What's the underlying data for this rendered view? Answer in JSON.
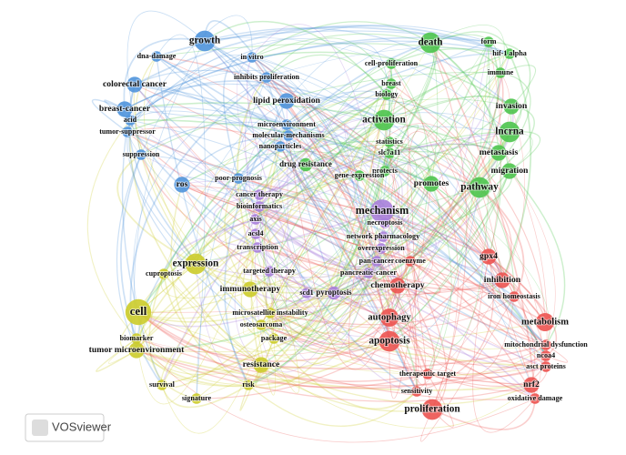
{
  "clusters": [
    {
      "color": "#4f94dc",
      "nodes": [
        "growth",
        "dna-damage",
        "in vitro",
        "inhibits proliferation",
        "colorectal cancer",
        "lipid peroxidation",
        "breast-cancer",
        "acid",
        "tumor-suppressor",
        "microenvironment",
        "molecular-mechanisms",
        "nanoparticles",
        "suppression",
        "poor-prognosis",
        "ros"
      ]
    },
    {
      "color": "#4cc44c",
      "nodes": [
        "death",
        "form",
        "hif-1 alpha",
        "immune",
        "cell-proliferation",
        "breast",
        "biology",
        "invasion",
        "activation",
        "lncrna",
        "statistics",
        "slc7a11",
        "metastasis",
        "migration",
        "protects",
        "promotes",
        "pathway",
        "drug resistance",
        "gene-expression"
      ]
    },
    {
      "color": "#a97fdc",
      "nodes": [
        "cancer therapy",
        "bioinformatics",
        "mechanism",
        "necroptosis",
        "axis",
        "acsl4",
        "network pharmacology",
        "transcription",
        "overexpression",
        "pan-cancer",
        "targeted therapy",
        "pancreatic-cancer",
        "scd1",
        "pyroptosis"
      ]
    },
    {
      "color": "#cccc2a",
      "nodes": [
        "expression",
        "cuproptosis",
        "immunotherapy",
        "cell",
        "microsatellite instability",
        "osteosarcoma",
        "biomarker",
        "package",
        "tumor microenvironment",
        "resistance",
        "survival",
        "risk",
        "signature"
      ]
    },
    {
      "color": "#ec5350",
      "nodes": [
        "gpx4",
        "coenzyme",
        "chemotherapy",
        "inhibition",
        "iron homeostasis",
        "autophagy",
        "metabolism",
        "apoptosis",
        "mitochondrial dysfunction",
        "ncoa4",
        "asct proteins",
        "nrf2",
        "therapeutic target",
        "sensitivity",
        "oxidative damage",
        "proliferation"
      ]
    }
  ],
  "logo": "VOSviewer"
}
